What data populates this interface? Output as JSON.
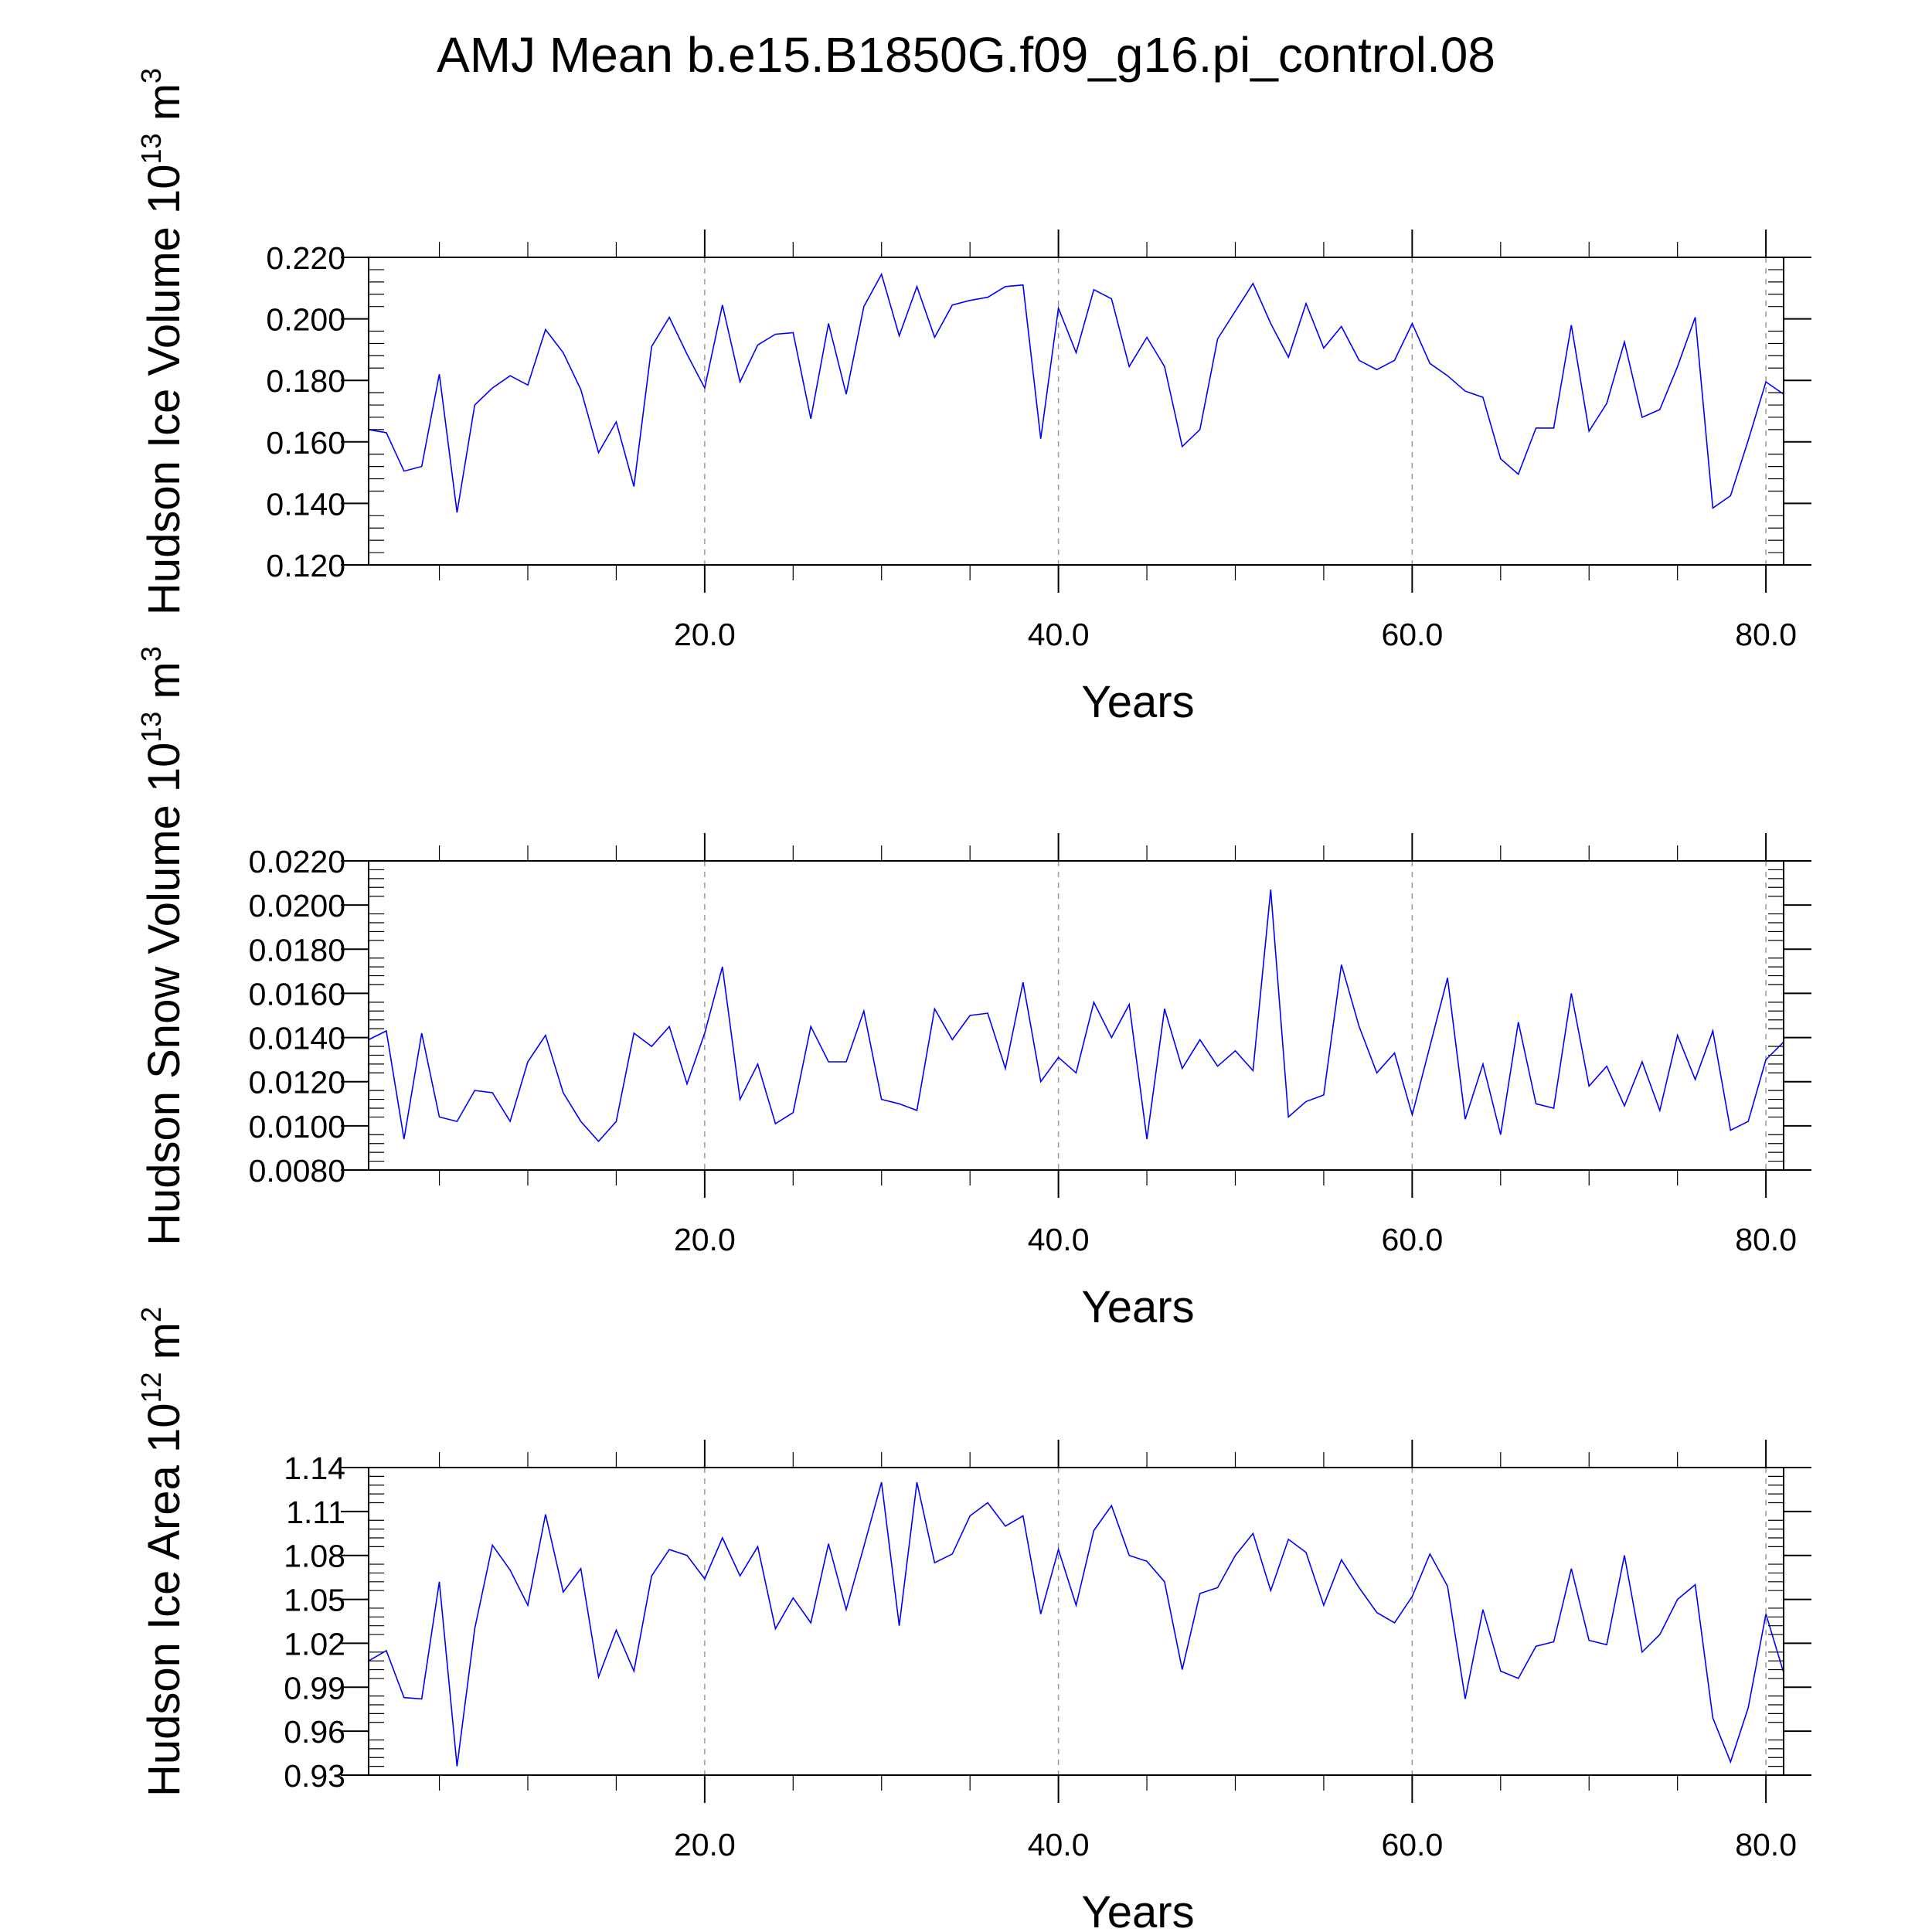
{
  "page": {
    "title": "AMJ Mean b.e15.B1850G.f09_g16.pi_control.08"
  },
  "colors": {
    "line": "#0000ff",
    "grid": "#9a9a9a",
    "axis": "#000000"
  },
  "chart_data": [
    {
      "type": "line",
      "xlabel": "Years",
      "ylabel_text": "Hudson Ice Volume 10",
      "ylabel_exp": "13",
      "ylabel_unit": " m",
      "ylabel_unit_exp": "3",
      "xlim": [
        1,
        81
      ],
      "ylim": [
        0.12,
        0.22
      ],
      "xticks": [
        20,
        40,
        60,
        80
      ],
      "xtick_labels": [
        "20.0",
        "40.0",
        "60.0",
        "80.0"
      ],
      "yticks": [
        0.12,
        0.14,
        0.16,
        0.18,
        0.2,
        0.22
      ],
      "ytick_labels": [
        "0.120",
        "0.140",
        "0.160",
        "0.180",
        "0.200",
        "0.220"
      ],
      "grid": "dashed vertical at major x ticks",
      "series": [
        {
          "x": [
            1,
            2,
            3,
            4,
            5,
            6,
            7,
            8,
            9,
            10,
            11,
            12,
            13,
            14,
            15,
            16,
            17,
            18,
            19,
            20,
            21,
            22,
            23,
            24,
            25,
            26,
            27,
            28,
            29,
            30,
            31,
            32,
            33,
            34,
            35,
            36,
            37,
            38,
            39,
            40,
            41,
            42,
            43,
            44,
            45,
            46,
            47,
            48,
            49,
            50,
            51,
            52,
            53,
            54,
            55,
            56,
            57,
            58,
            59,
            60,
            61,
            62,
            63,
            64,
            65,
            66,
            67,
            68,
            69,
            70,
            71,
            72,
            73,
            74,
            75,
            76,
            77,
            78,
            79,
            80,
            81
          ],
          "values": [
            0.164,
            0.163,
            0.1505,
            0.152,
            0.182,
            0.137,
            0.172,
            0.1775,
            0.1815,
            0.1785,
            0.1965,
            0.189,
            0.177,
            0.1565,
            0.1665,
            0.1455,
            0.191,
            0.2005,
            0.1885,
            0.1775,
            0.2045,
            0.1795,
            0.1915,
            0.195,
            0.1955,
            0.1675,
            0.1985,
            0.1755,
            0.204,
            0.2145,
            0.1945,
            0.2105,
            0.194,
            0.2045,
            0.206,
            0.207,
            0.2105,
            0.211,
            0.161,
            0.2035,
            0.189,
            0.2095,
            0.2065,
            0.1845,
            0.194,
            0.1845,
            0.1585,
            0.164,
            0.1935,
            0.2025,
            0.2115,
            0.1985,
            0.1875,
            0.205,
            0.1905,
            0.1975,
            0.1865,
            0.1835,
            0.1865,
            0.1985,
            0.1855,
            0.1815,
            0.1765,
            0.1745,
            0.1545,
            0.1495,
            0.1645,
            0.1645,
            0.198,
            0.1635,
            0.1725,
            0.1925,
            0.168,
            0.1705,
            0.1845,
            0.2005,
            0.1385,
            0.1425,
            0.1605,
            0.1795,
            0.1755
          ]
        }
      ]
    },
    {
      "type": "line",
      "xlabel": "Years",
      "ylabel_text": "Hudson Snow Volume 10",
      "ylabel_exp": "13",
      "ylabel_unit": " m",
      "ylabel_unit_exp": "3",
      "xlim": [
        1,
        81
      ],
      "ylim": [
        0.008,
        0.022
      ],
      "xticks": [
        20,
        40,
        60,
        80
      ],
      "xtick_labels": [
        "20.0",
        "40.0",
        "60.0",
        "80.0"
      ],
      "yticks": [
        0.008,
        0.01,
        0.012,
        0.014,
        0.016,
        0.018,
        0.02,
        0.022
      ],
      "ytick_labels": [
        "0.0080",
        "0.0100",
        "0.0120",
        "0.0140",
        "0.0160",
        "0.0180",
        "0.0200",
        "0.0220"
      ],
      "grid": "dashed vertical at major x ticks",
      "series": [
        {
          "x": [
            1,
            2,
            3,
            4,
            5,
            6,
            7,
            8,
            9,
            10,
            11,
            12,
            13,
            14,
            15,
            16,
            17,
            18,
            19,
            20,
            21,
            22,
            23,
            24,
            25,
            26,
            27,
            28,
            29,
            30,
            31,
            32,
            33,
            34,
            35,
            36,
            37,
            38,
            39,
            40,
            41,
            42,
            43,
            44,
            45,
            46,
            47,
            48,
            49,
            50,
            51,
            52,
            53,
            54,
            55,
            56,
            57,
            58,
            59,
            60,
            61,
            62,
            63,
            64,
            65,
            66,
            67,
            68,
            69,
            70,
            71,
            72,
            73,
            74,
            75,
            76,
            77,
            78,
            79,
            80,
            81
          ],
          "values": [
            0.0139,
            0.0143,
            0.0094,
            0.0142,
            0.0104,
            0.0102,
            0.0116,
            0.0115,
            0.0102,
            0.0129,
            0.0141,
            0.0115,
            0.0102,
            0.0093,
            0.0102,
            0.0142,
            0.0136,
            0.0145,
            0.0119,
            0.0142,
            0.0172,
            0.0112,
            0.0128,
            0.0101,
            0.0106,
            0.0145,
            0.0129,
            0.0129,
            0.0152,
            0.0112,
            0.011,
            0.0107,
            0.0153,
            0.0139,
            0.015,
            0.0151,
            0.0126,
            0.0165,
            0.012,
            0.0131,
            0.0124,
            0.0156,
            0.014,
            0.0155,
            0.0094,
            0.0153,
            0.0126,
            0.0139,
            0.0127,
            0.0134,
            0.0125,
            0.0207,
            0.0104,
            0.0111,
            0.0114,
            0.0173,
            0.0145,
            0.0124,
            0.0133,
            0.0105,
            0.0136,
            0.0167,
            0.0103,
            0.0128,
            0.0096,
            0.0147,
            0.011,
            0.0108,
            0.016,
            0.0118,
            0.0127,
            0.0109,
            0.0129,
            0.0107,
            0.0141,
            0.0121,
            0.0143,
            0.0098,
            0.0102,
            0.013,
            0.0138
          ]
        }
      ]
    },
    {
      "type": "line",
      "xlabel": "Years",
      "ylabel_text": "Hudson Ice Area 10",
      "ylabel_exp": "12",
      "ylabel_unit": " m",
      "ylabel_unit_exp": "2",
      "xlim": [
        1,
        81
      ],
      "ylim": [
        0.93,
        1.14
      ],
      "xticks": [
        20,
        40,
        60,
        80
      ],
      "xtick_labels": [
        "20.0",
        "40.0",
        "60.0",
        "80.0"
      ],
      "yticks": [
        0.93,
        0.96,
        0.99,
        1.02,
        1.05,
        1.08,
        1.11,
        1.14
      ],
      "ytick_labels": [
        "0.93",
        "0.96",
        "0.99",
        "1.02",
        "1.05",
        "1.08",
        "1.11",
        "1.14"
      ],
      "grid": "dashed vertical at major x ticks",
      "series": [
        {
          "x": [
            1,
            2,
            3,
            4,
            5,
            6,
            7,
            8,
            9,
            10,
            11,
            12,
            13,
            14,
            15,
            16,
            17,
            18,
            19,
            20,
            21,
            22,
            23,
            24,
            25,
            26,
            27,
            28,
            29,
            30,
            31,
            32,
            33,
            34,
            35,
            36,
            37,
            38,
            39,
            40,
            41,
            42,
            43,
            44,
            45,
            46,
            47,
            48,
            49,
            50,
            51,
            52,
            53,
            54,
            55,
            56,
            57,
            58,
            59,
            60,
            61,
            62,
            63,
            64,
            65,
            66,
            67,
            68,
            69,
            70,
            71,
            72,
            73,
            74,
            75,
            76,
            77,
            78,
            79,
            80,
            81
          ],
          "values": [
            1.008,
            1.015,
            0.983,
            0.982,
            1.062,
            0.936,
            1.03,
            1.087,
            1.07,
            1.046,
            1.108,
            1.055,
            1.071,
            0.997,
            1.029,
            1.001,
            1.066,
            1.084,
            1.08,
            1.064,
            1.092,
            1.066,
            1.086,
            1.03,
            1.051,
            1.034,
            1.088,
            1.043,
            1.086,
            1.13,
            1.032,
            1.13,
            1.075,
            1.081,
            1.107,
            1.116,
            1.1,
            1.107,
            1.04,
            1.084,
            1.046,
            1.097,
            1.114,
            1.08,
            1.076,
            1.062,
            1.002,
            1.054,
            1.058,
            1.08,
            1.095,
            1.056,
            1.091,
            1.082,
            1.046,
            1.077,
            1.058,
            1.041,
            1.034,
            1.052,
            1.081,
            1.059,
            0.982,
            1.043,
            1.001,
            0.996,
            1.018,
            1.021,
            1.071,
            1.022,
            1.019,
            1.08,
            1.014,
            1.026,
            1.05,
            1.06,
            0.969,
            0.939,
            0.976,
            1.04,
            1.0
          ]
        }
      ]
    }
  ]
}
